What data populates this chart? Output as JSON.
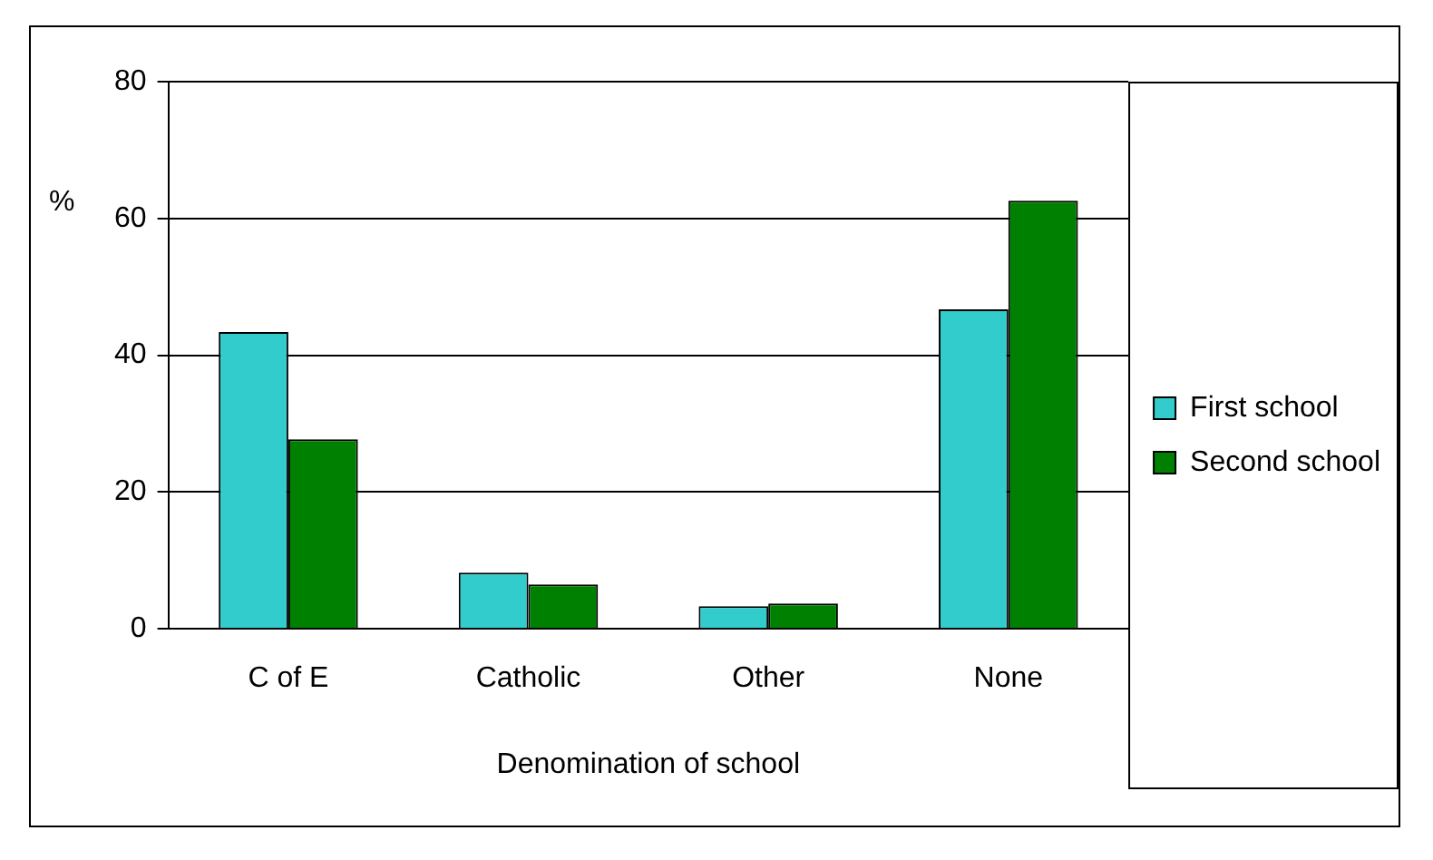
{
  "chart_data": {
    "type": "bar",
    "xlabel": "Denomination of school",
    "ylabel": "%",
    "categories": [
      "C of E",
      "Catholic",
      "Other",
      "None"
    ],
    "series": [
      {
        "name": "First school",
        "color": "#33cccc",
        "values": [
          43.4,
          8.2,
          3.3,
          46.7
        ]
      },
      {
        "name": "Second school",
        "color": "#008000",
        "values": [
          27.7,
          6.5,
          3.7,
          62.6
        ]
      }
    ],
    "ylim": [
      0,
      80
    ],
    "yticks": [
      0,
      20,
      40,
      60,
      80
    ],
    "grid": "y",
    "legend": "right"
  }
}
